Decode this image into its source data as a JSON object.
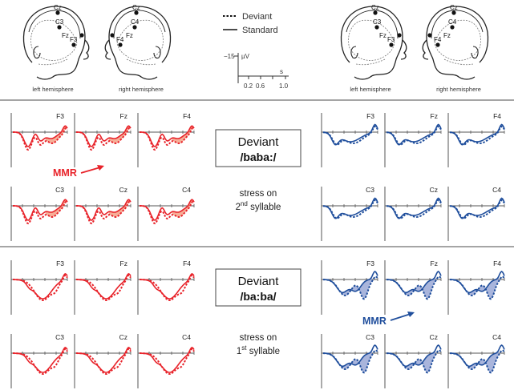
{
  "colors": {
    "red": "#e8232a",
    "red_fill": "#f4a186",
    "blue": "#1f4e9c",
    "blue_fill": "#9aa8d6",
    "axis": "#555555",
    "divider": "#6f6f6f"
  },
  "heads": {
    "left_hemisphere_label": "left hemisphere",
    "right_hemisphere_label": "right hemisphere",
    "electrodes_left": [
      "Cz",
      "C3",
      "Fz",
      "F3"
    ],
    "electrodes_right": [
      "Cz",
      "C4",
      "Fz",
      "F4"
    ]
  },
  "legend": {
    "deviant": "Deviant",
    "standard": "Standard"
  },
  "scale": {
    "amp_label": "−15",
    "amp_unit": "µV",
    "time_unit": "s",
    "ticks": [
      "0.2",
      "0.6",
      "1.0"
    ]
  },
  "channels": [
    "F3",
    "Fz",
    "F4",
    "C3",
    "Cz",
    "C4"
  ],
  "row1": {
    "deviant_label": "Deviant",
    "stimulus": "/baba:/",
    "cond_line1": "stress on",
    "cond_line2_num": "2",
    "cond_line2_sup": "nd",
    "cond_line2_rest": " syllable",
    "mmr_label": "MMR"
  },
  "row2": {
    "deviant_label": "Deviant",
    "stimulus": "/ba:ba/",
    "cond_line1": "stress on",
    "cond_line2_num": "1",
    "cond_line2_sup": "st",
    "cond_line2_rest": " syllable",
    "mmr_label": "MMR"
  }
}
